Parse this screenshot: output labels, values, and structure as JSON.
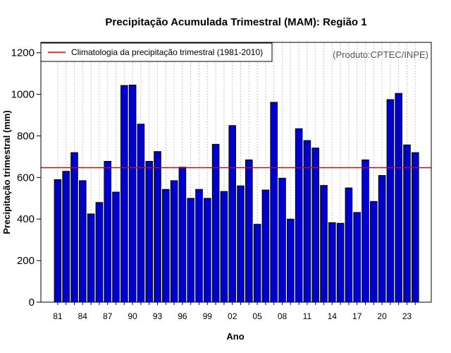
{
  "chart_data": {
    "type": "bar",
    "title": "Precipitação Acumulada Trimestral (MAM): Região 1",
    "xlabel": "Ano",
    "ylabel": "Precipitação trimestral (mm)",
    "ylim": [
      0,
      1250
    ],
    "yticks": [
      0,
      200,
      400,
      600,
      800,
      1000,
      1200
    ],
    "categories": [
      "1981",
      "1982",
      "1983",
      "1984",
      "1985",
      "1986",
      "1987",
      "1988",
      "1989",
      "1990",
      "1991",
      "1992",
      "1993",
      "1994",
      "1995",
      "1996",
      "1997",
      "1998",
      "1999",
      "2000",
      "2001",
      "2002",
      "2003",
      "2004",
      "2005",
      "2006",
      "2007",
      "2008",
      "2009",
      "2010",
      "2011",
      "2012",
      "2013",
      "2014",
      "2015",
      "2016",
      "2017",
      "2018",
      "2019",
      "2020",
      "2021",
      "2022",
      "2023",
      "2024"
    ],
    "values": [
      590,
      630,
      720,
      585,
      425,
      480,
      678,
      530,
      1043,
      1045,
      857,
      678,
      725,
      543,
      585,
      650,
      500,
      543,
      500,
      760,
      533,
      850,
      560,
      685,
      375,
      540,
      962,
      597,
      400,
      835,
      778,
      742,
      562,
      383,
      380,
      550,
      432,
      685,
      485,
      610,
      975,
      1005,
      757,
      720
    ],
    "xtick_labels": [
      "81",
      "84",
      "87",
      "90",
      "93",
      "96",
      "99",
      "02",
      "05",
      "08",
      "11",
      "14",
      "17",
      "20",
      "23"
    ],
    "xtick_indices": [
      0,
      3,
      6,
      9,
      12,
      15,
      18,
      21,
      24,
      27,
      30,
      33,
      36,
      39,
      42
    ],
    "climatology": {
      "value": 647,
      "label": "Climatologia da precipitação trimestral (1981-2010)",
      "color": "#e00000"
    },
    "legend_position": "top-left",
    "grid": "vertical dotted",
    "bar_color": "#0000cc",
    "bar_edge_color": "#000000",
    "credit": "(Produto:CPTEC/INPE)"
  }
}
